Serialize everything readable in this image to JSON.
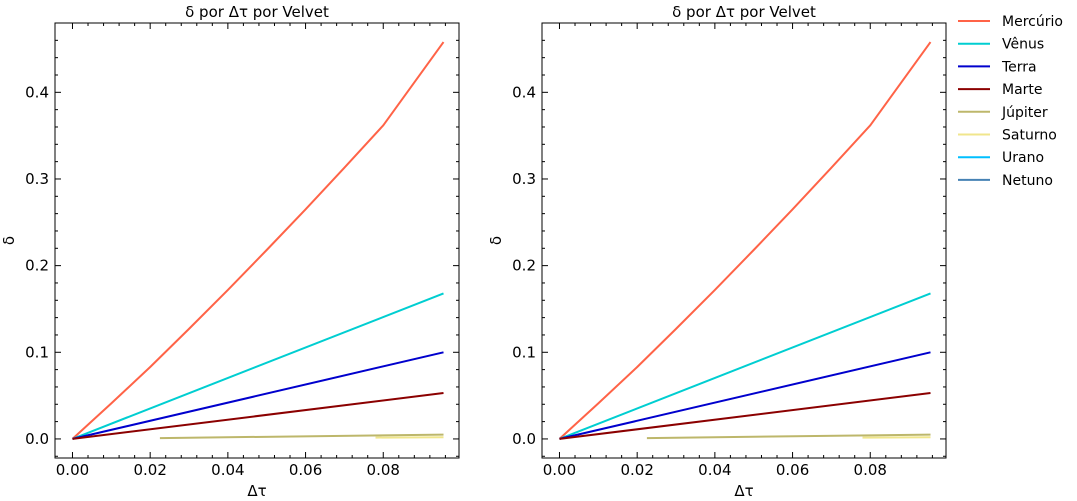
{
  "chart_data": [
    {
      "type": "line",
      "title": "δ por Δτ por Velvet",
      "xlabel": "Δτ",
      "ylabel": "δ",
      "xlim": [
        -0.0045,
        0.0995
      ],
      "ylim": [
        -0.022,
        0.48
      ],
      "xticks": [
        "0.00",
        "0.02",
        "0.04",
        "0.06",
        "0.08"
      ],
      "yticks": [
        "0.0",
        "0.1",
        "0.2",
        "0.3",
        "0.4"
      ],
      "grid": false,
      "series": [
        {
          "name": "Mercúrio",
          "color": "#ff6347",
          "x": [
            0.0,
            0.01,
            0.02,
            0.03,
            0.04,
            0.05,
            0.06,
            0.07,
            0.08,
            0.0955
          ],
          "y": [
            0.0,
            0.041,
            0.083,
            0.127,
            0.172,
            0.218,
            0.265,
            0.313,
            0.362,
            0.458
          ]
        },
        {
          "name": "Vênus",
          "color": "#00ced1",
          "x": [
            0.0,
            0.0955
          ],
          "y": [
            0.0,
            0.168
          ]
        },
        {
          "name": "Terra",
          "color": "#0000cd",
          "x": [
            0.0,
            0.0955
          ],
          "y": [
            0.0,
            0.1
          ]
        },
        {
          "name": "Marte",
          "color": "#8b0000",
          "x": [
            0.0,
            0.0955
          ],
          "y": [
            0.0,
            0.053
          ]
        },
        {
          "name": "Júpiter",
          "color": "#bdb76b",
          "x": [
            0.0225,
            0.0955
          ],
          "y": [
            0.001,
            0.005
          ]
        },
        {
          "name": "Saturno",
          "color": "#f0e68c",
          "x": [
            0.078,
            0.0955
          ],
          "y": [
            0.0015,
            0.002
          ]
        },
        {
          "name": "Urano",
          "color": "#00bfff",
          "x": [],
          "y": []
        },
        {
          "name": "Netuno",
          "color": "#4682b4",
          "x": [],
          "y": []
        }
      ]
    },
    {
      "type": "line",
      "title": "δ por Δτ por Velvet",
      "xlabel": "Δτ",
      "ylabel": "δ",
      "xlim": [
        -0.0045,
        0.0995
      ],
      "ylim": [
        -0.022,
        0.48
      ],
      "xticks": [
        "0.00",
        "0.02",
        "0.04",
        "0.06",
        "0.08"
      ],
      "yticks": [
        "0.0",
        "0.1",
        "0.2",
        "0.3",
        "0.4"
      ],
      "grid": false,
      "series": [
        {
          "name": "Mercúrio",
          "color": "#ff6347",
          "x": [
            0.0,
            0.01,
            0.02,
            0.03,
            0.04,
            0.05,
            0.06,
            0.07,
            0.08,
            0.0955
          ],
          "y": [
            0.0,
            0.041,
            0.083,
            0.127,
            0.172,
            0.218,
            0.265,
            0.313,
            0.362,
            0.458
          ]
        },
        {
          "name": "Vênus",
          "color": "#00ced1",
          "x": [
            0.0,
            0.0955
          ],
          "y": [
            0.0,
            0.168
          ]
        },
        {
          "name": "Terra",
          "color": "#0000cd",
          "x": [
            0.0,
            0.0955
          ],
          "y": [
            0.0,
            0.1
          ]
        },
        {
          "name": "Marte",
          "color": "#8b0000",
          "x": [
            0.0,
            0.0955
          ],
          "y": [
            0.0,
            0.053
          ]
        },
        {
          "name": "Júpiter",
          "color": "#bdb76b",
          "x": [
            0.0225,
            0.0955
          ],
          "y": [
            0.001,
            0.005
          ]
        },
        {
          "name": "Saturno",
          "color": "#f0e68c",
          "x": [
            0.078,
            0.0955
          ],
          "y": [
            0.0015,
            0.002
          ]
        },
        {
          "name": "Urano",
          "color": "#00bfff",
          "x": [],
          "y": []
        },
        {
          "name": "Netuno",
          "color": "#4682b4",
          "x": [],
          "y": []
        }
      ]
    }
  ],
  "legend": {
    "placement": "outside-right-top",
    "entries": [
      {
        "label": "Mercúrio",
        "color": "#ff6347"
      },
      {
        "label": "Vênus",
        "color": "#00ced1"
      },
      {
        "label": "Terra",
        "color": "#0000cd"
      },
      {
        "label": "Marte",
        "color": "#8b0000"
      },
      {
        "label": "Júpiter",
        "color": "#bdb76b"
      },
      {
        "label": "Saturno",
        "color": "#f0e68c"
      },
      {
        "label": "Urano",
        "color": "#00bfff"
      },
      {
        "label": "Netuno",
        "color": "#4682b4"
      }
    ]
  }
}
